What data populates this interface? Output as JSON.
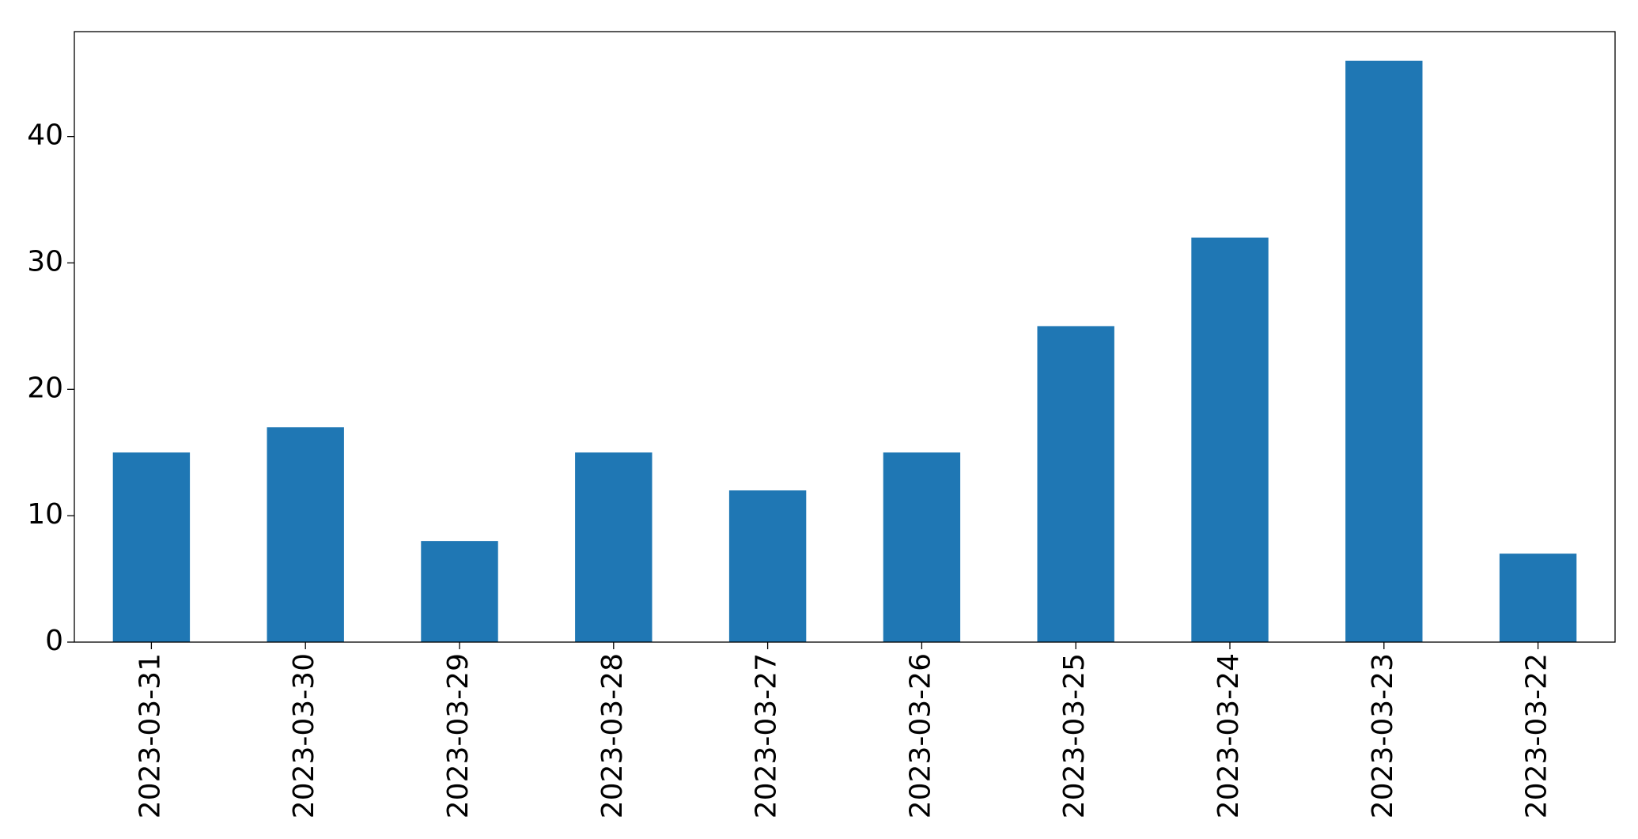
{
  "chart_data": {
    "type": "bar",
    "categories": [
      "2023-03-31",
      "2023-03-30",
      "2023-03-29",
      "2023-03-28",
      "2023-03-27",
      "2023-03-26",
      "2023-03-25",
      "2023-03-24",
      "2023-03-23",
      "2023-03-22"
    ],
    "values": [
      15,
      17,
      8,
      15,
      12,
      15,
      25,
      32,
      46,
      7
    ],
    "color": "#1f77b4",
    "ylim": [
      0,
      48.3
    ],
    "yticks": [
      0,
      10,
      20,
      30,
      40
    ],
    "grid": false
  }
}
